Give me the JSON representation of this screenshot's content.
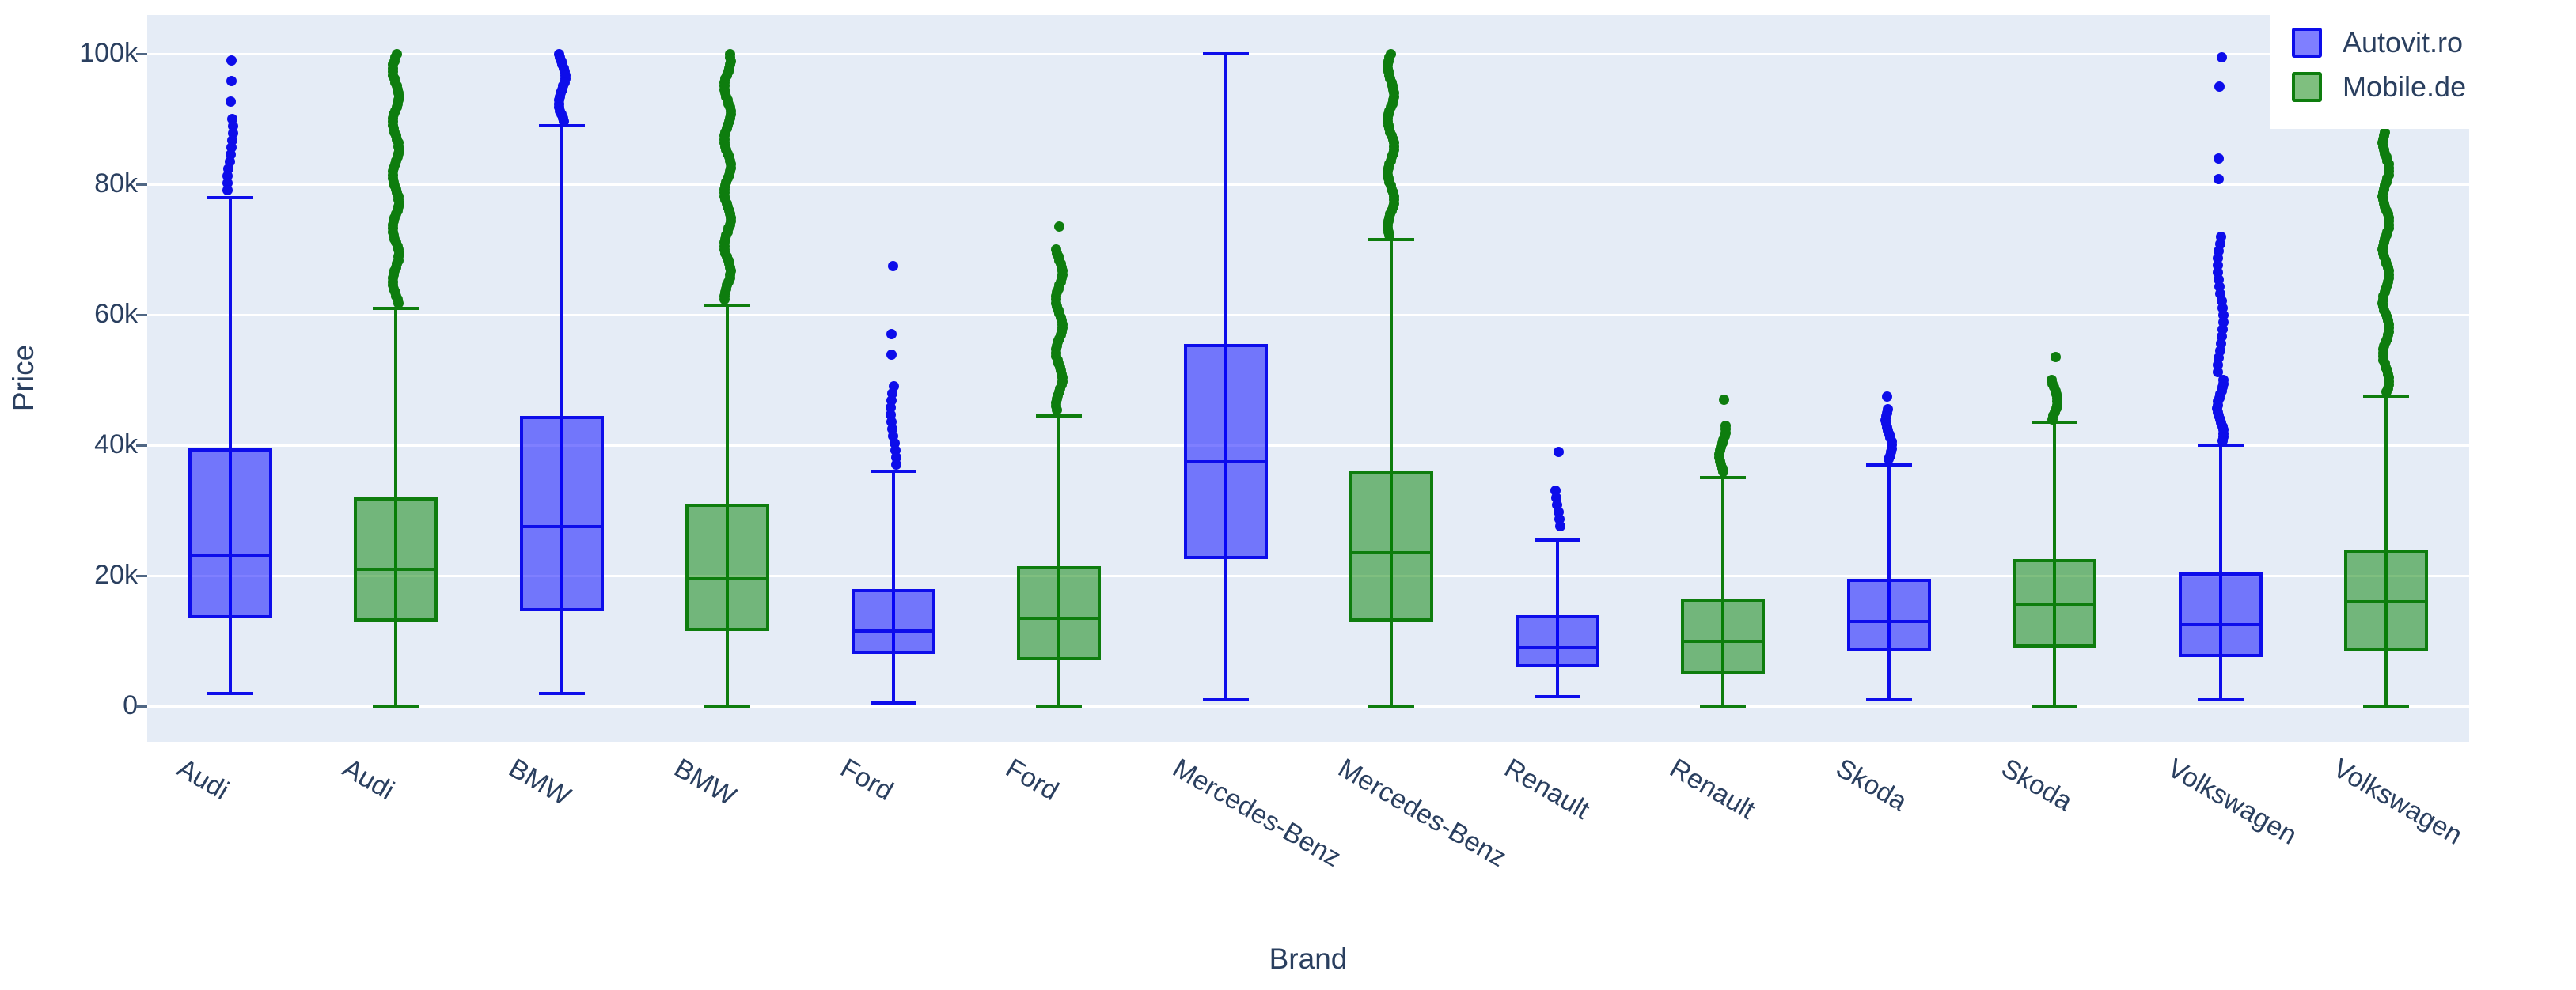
{
  "figure": {
    "background": "#ffffff",
    "plot_bg": "#e5ecf6",
    "grid_color": "#ffffff",
    "text_color": "#2a3f5f",
    "tick_mark_color": "#506784"
  },
  "yaxis": {
    "title": "Price",
    "ticks": [
      {
        "label": "0",
        "value": 0
      },
      {
        "label": "20k",
        "value": 20
      },
      {
        "label": "40k",
        "value": 40
      },
      {
        "label": "60k",
        "value": 60
      },
      {
        "label": "80k",
        "value": 80
      },
      {
        "label": "100k",
        "value": 100
      }
    ]
  },
  "xaxis": {
    "title": "Brand"
  },
  "legend": {
    "items": [
      {
        "label": "Autovit.ro",
        "fill": "rgba(0,0,255,0.5)",
        "border": "#0d0dea"
      },
      {
        "label": "Mobile.de",
        "fill": "rgba(0,128,0,0.5)",
        "border": "#0e7d0e"
      }
    ]
  },
  "chart_data": {
    "type": "box",
    "title": "",
    "xlabel": "Brand",
    "ylabel": "Price",
    "y_unit": "thousands",
    "ylim": [
      -6,
      106
    ],
    "grid": true,
    "legend_position": "top-right",
    "categories": [
      "Audi",
      "BMW",
      "Ford",
      "Mercedes-Benz",
      "Renault",
      "Skoda",
      "Volkswagen"
    ],
    "series": [
      {
        "name": "Autovit.ro",
        "line_color": "#0d0dea",
        "fill_color": "rgba(0,0,255,0.5)",
        "boxes": [
          {
            "brand": "Audi",
            "whisker_low": 2,
            "q1": 13.5,
            "median": 23,
            "q3": 39.5,
            "whisker_high": 78,
            "outliers": [
              {
                "from": 79,
                "to": 90,
                "density": "medium"
              },
              {
                "from": 91,
                "to": 99,
                "density": "sparse"
              }
            ]
          },
          {
            "brand": "BMW",
            "whisker_low": 2,
            "q1": 14.5,
            "median": 27.5,
            "q3": 44.5,
            "whisker_high": 89,
            "outliers": [
              {
                "from": 89.5,
                "to": 100,
                "density": "dense"
              }
            ]
          },
          {
            "brand": "Ford",
            "whisker_low": 0.5,
            "q1": 8,
            "median": 11.5,
            "q3": 18,
            "whisker_high": 36,
            "outliers": [
              {
                "from": 36.5,
                "to": 49,
                "density": "medium"
              },
              {
                "from": 52,
                "to": 57,
                "density": "sparse"
              },
              {
                "from": 66.5,
                "to": 67.5,
                "density": "sparse"
              }
            ]
          },
          {
            "brand": "Mercedes-Benz",
            "whisker_low": 1,
            "q1": 22.5,
            "median": 37.5,
            "q3": 55.5,
            "whisker_high": 100,
            "outliers": []
          },
          {
            "brand": "Renault",
            "whisker_low": 1.5,
            "q1": 6,
            "median": 9,
            "q3": 14,
            "whisker_high": 25.5,
            "outliers": [
              {
                "from": 26.5,
                "to": 33,
                "density": "medium"
              },
              {
                "from": 38,
                "to": 39,
                "density": "sparse"
              }
            ]
          },
          {
            "brand": "Skoda",
            "whisker_low": 1,
            "q1": 8.5,
            "median": 13,
            "q3": 19.5,
            "whisker_high": 37,
            "outliers": [
              {
                "from": 37.5,
                "to": 45.5,
                "density": "dense"
              },
              {
                "from": 46.5,
                "to": 47.5,
                "density": "sparse"
              }
            ]
          },
          {
            "brand": "Volkswagen",
            "whisker_low": 1,
            "q1": 7.5,
            "median": 12.5,
            "q3": 20.5,
            "whisker_high": 40,
            "outliers": [
              {
                "from": 40.5,
                "to": 50,
                "density": "dense"
              },
              {
                "from": 51,
                "to": 72,
                "density": "medium"
              },
              {
                "from": 78,
                "to": 84,
                "density": "sparse"
              },
              {
                "from": 92.5,
                "to": 95,
                "density": "sparse"
              },
              {
                "from": 98.5,
                "to": 99.5,
                "density": "sparse"
              }
            ]
          }
        ]
      },
      {
        "name": "Mobile.de",
        "line_color": "#0e7d0e",
        "fill_color": "rgba(0,128,0,0.5)",
        "boxes": [
          {
            "brand": "Audi",
            "whisker_low": 0,
            "q1": 13,
            "median": 21,
            "q3": 32,
            "whisker_high": 61,
            "outliers": [
              {
                "from": 61.5,
                "to": 100,
                "density": "dense"
              }
            ]
          },
          {
            "brand": "BMW",
            "whisker_low": 0,
            "q1": 11.5,
            "median": 19.5,
            "q3": 31,
            "whisker_high": 61.5,
            "outliers": [
              {
                "from": 62,
                "to": 100,
                "density": "dense"
              }
            ]
          },
          {
            "brand": "Ford",
            "whisker_low": 0,
            "q1": 7,
            "median": 13.5,
            "q3": 21.5,
            "whisker_high": 44.5,
            "outliers": [
              {
                "from": 45,
                "to": 70,
                "density": "dense"
              },
              {
                "from": 72.5,
                "to": 73.5,
                "density": "sparse"
              }
            ]
          },
          {
            "brand": "Mercedes-Benz",
            "whisker_low": 0,
            "q1": 13,
            "median": 23.5,
            "q3": 36,
            "whisker_high": 71.5,
            "outliers": [
              {
                "from": 72,
                "to": 100,
                "density": "dense"
              }
            ]
          },
          {
            "brand": "Renault",
            "whisker_low": 0,
            "q1": 5,
            "median": 10,
            "q3": 16.5,
            "whisker_high": 35,
            "outliers": [
              {
                "from": 35.5,
                "to": 43,
                "density": "dense"
              },
              {
                "from": 45,
                "to": 47,
                "density": "sparse"
              }
            ]
          },
          {
            "brand": "Skoda",
            "whisker_low": 0,
            "q1": 9,
            "median": 15.5,
            "q3": 22.5,
            "whisker_high": 43.5,
            "outliers": [
              {
                "from": 44,
                "to": 50,
                "density": "dense"
              },
              {
                "from": 52,
                "to": 53.5,
                "density": "sparse"
              }
            ]
          },
          {
            "brand": "Volkswagen",
            "whisker_low": 0,
            "q1": 8.5,
            "median": 16,
            "q3": 24,
            "whisker_high": 47.5,
            "outliers": [
              {
                "from": 48,
                "to": 88,
                "density": "dense"
              }
            ]
          }
        ]
      }
    ]
  }
}
